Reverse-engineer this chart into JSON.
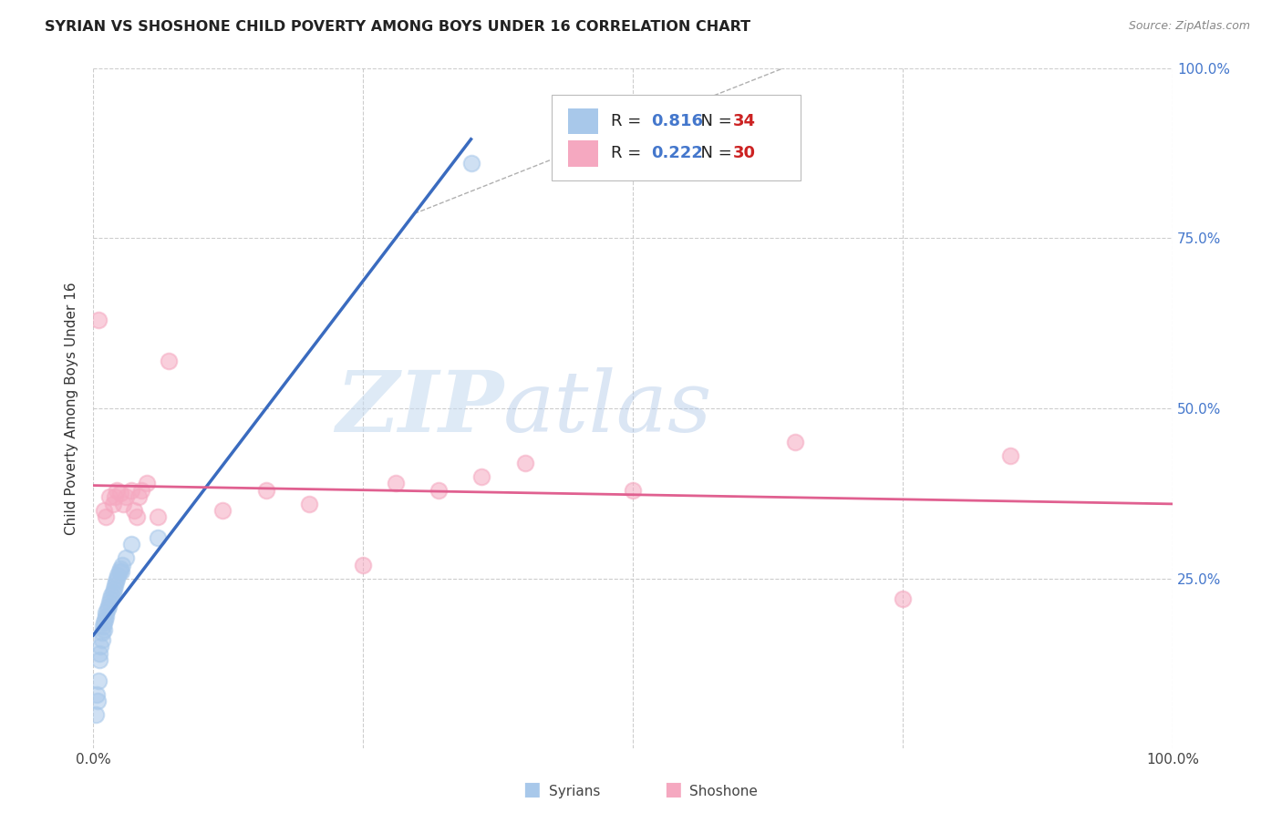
{
  "title": "SYRIAN VS SHOSHONE CHILD POVERTY AMONG BOYS UNDER 16 CORRELATION CHART",
  "source": "Source: ZipAtlas.com",
  "ylabel": "Child Poverty Among Boys Under 16",
  "xlim": [
    0,
    1.0
  ],
  "ylim": [
    0,
    1.0
  ],
  "watermark_zip": "ZIP",
  "watermark_atlas": "atlas",
  "background_color": "#ffffff",
  "grid_color": "#c8c8c8",
  "syrian_color": "#a8c8ea",
  "shoshone_color": "#f5a8c0",
  "syrian_R": 0.816,
  "syrian_N": 34,
  "shoshone_R": 0.222,
  "shoshone_N": 30,
  "syrian_line_color": "#3a6bbf",
  "shoshone_line_color": "#e06090",
  "syrian_x": [
    0.002,
    0.003,
    0.004,
    0.005,
    0.006,
    0.006,
    0.007,
    0.008,
    0.008,
    0.009,
    0.01,
    0.01,
    0.011,
    0.012,
    0.012,
    0.013,
    0.014,
    0.015,
    0.016,
    0.017,
    0.018,
    0.019,
    0.02,
    0.021,
    0.022,
    0.023,
    0.024,
    0.025,
    0.026,
    0.027,
    0.03,
    0.035,
    0.06,
    0.35
  ],
  "syrian_y": [
    0.05,
    0.08,
    0.07,
    0.1,
    0.13,
    0.14,
    0.15,
    0.16,
    0.17,
    0.18,
    0.175,
    0.185,
    0.19,
    0.195,
    0.2,
    0.205,
    0.21,
    0.215,
    0.22,
    0.225,
    0.23,
    0.235,
    0.24,
    0.245,
    0.25,
    0.255,
    0.26,
    0.265,
    0.26,
    0.27,
    0.28,
    0.3,
    0.31,
    0.86
  ],
  "shoshone_x": [
    0.005,
    0.01,
    0.012,
    0.015,
    0.018,
    0.02,
    0.022,
    0.025,
    0.028,
    0.03,
    0.035,
    0.038,
    0.04,
    0.042,
    0.045,
    0.05,
    0.06,
    0.07,
    0.12,
    0.16,
    0.2,
    0.25,
    0.28,
    0.32,
    0.36,
    0.4,
    0.5,
    0.65,
    0.75,
    0.85
  ],
  "shoshone_y": [
    0.63,
    0.35,
    0.34,
    0.37,
    0.36,
    0.37,
    0.38,
    0.375,
    0.36,
    0.37,
    0.38,
    0.35,
    0.34,
    0.37,
    0.38,
    0.39,
    0.34,
    0.57,
    0.35,
    0.38,
    0.36,
    0.27,
    0.39,
    0.38,
    0.4,
    0.42,
    0.38,
    0.45,
    0.22,
    0.43
  ]
}
